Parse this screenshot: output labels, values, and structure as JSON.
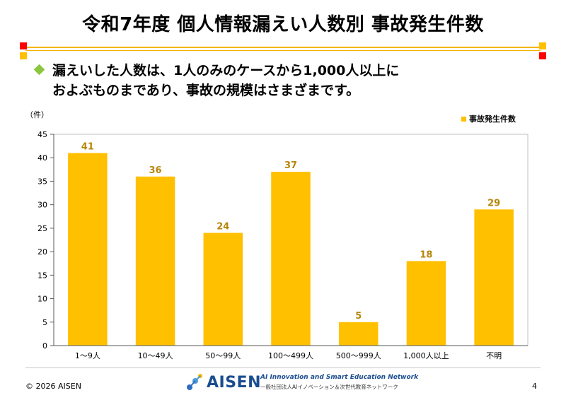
{
  "header": {
    "title": "令和7年度 個人情報漏えい人数別 事故発生件数",
    "bullet_line1": "漏えいした人数は、1人のみのケースから1,000人以上に",
    "bullet_line2": "およぶものまであり、事故の規模はさまざまです。"
  },
  "colors": {
    "bar": "#ffc000",
    "accent": "#f2b600",
    "bullet": "#8cc63f",
    "label": "#b8860b"
  },
  "chart_data": {
    "type": "bar",
    "categories": [
      "1～9人",
      "10～49人",
      "50～99人",
      "100～499人",
      "500～999人",
      "1,000人以上",
      "不明"
    ],
    "series": [
      {
        "name": "事故発生件数",
        "values": [
          41,
          36,
          24,
          37,
          5,
          18,
          29
        ]
      }
    ],
    "ylabel": "（件）",
    "ylim": [
      0,
      45
    ],
    "yticks": [
      0,
      5,
      10,
      15,
      20,
      25,
      30,
      35,
      40,
      45
    ],
    "legend": "top-right",
    "grid": false
  },
  "footer": {
    "copyright": "© 2026 AISEN",
    "page_number": "4",
    "logo_name": "AISEN",
    "logo_tagline_en": "AI Innovation and Smart Education Network",
    "logo_tagline_jp": "一般社団法人AIイノベーション＆次世代教育ネットワーク"
  }
}
